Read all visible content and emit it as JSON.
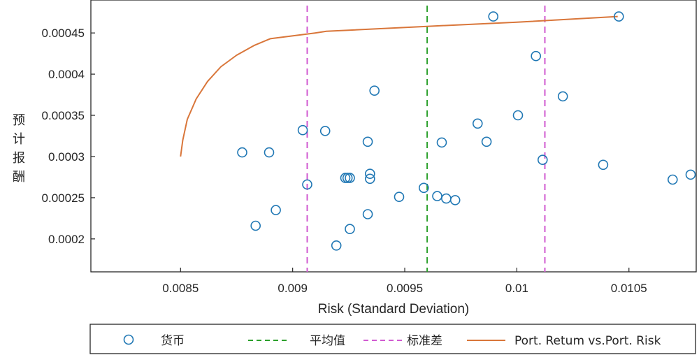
{
  "chart_data": {
    "type": "scatter",
    "xlabel": "Risk (Standard Deviation)",
    "ylabel": "预计报酬",
    "xlim": [
      0.0081,
      0.0108
    ],
    "ylim": [
      0.00016,
      0.00049
    ],
    "x_ticks": [
      0.0085,
      0.009,
      0.0095,
      0.01,
      0.0105
    ],
    "x_tick_labels": [
      "0.0085",
      "0.009",
      "0.0095",
      "0.01",
      "0.0105"
    ],
    "y_ticks": [
      0.0002,
      0.00025,
      0.0003,
      0.00035,
      0.0004,
      0.00045
    ],
    "y_tick_labels": [
      "0.0002",
      "0.00025",
      "0.0003",
      "0.00035",
      "0.0004",
      "0.00045"
    ],
    "grid": false,
    "legend_position": "bottom",
    "series": [
      {
        "name": "货币",
        "kind": "scatter",
        "marker": "circle-open",
        "color": "#1f77b4",
        "points": [
          [
            0.008775,
            0.000305
          ],
          [
            0.008835,
            0.000216
          ],
          [
            0.008895,
            0.000305
          ],
          [
            0.008925,
            0.000235
          ],
          [
            0.009045,
            0.000332
          ],
          [
            0.009065,
            0.000266
          ],
          [
            0.009145,
            0.000331
          ],
          [
            0.009195,
            0.000192
          ],
          [
            0.009235,
            0.000274
          ],
          [
            0.009245,
            0.000274
          ],
          [
            0.009255,
            0.000212
          ],
          [
            0.009255,
            0.000274
          ],
          [
            0.009335,
            0.000318
          ],
          [
            0.009335,
            0.00023
          ],
          [
            0.009345,
            0.000279
          ],
          [
            0.009345,
            0.000273
          ],
          [
            0.009365,
            0.00038
          ],
          [
            0.009475,
            0.000251
          ],
          [
            0.009585,
            0.000262
          ],
          [
            0.009645,
            0.000252
          ],
          [
            0.009665,
            0.000317
          ],
          [
            0.009685,
            0.000249
          ],
          [
            0.009725,
            0.000247
          ],
          [
            0.009825,
            0.00034
          ],
          [
            0.009865,
            0.000318
          ],
          [
            0.009895,
            0.00047
          ],
          [
            0.010005,
            0.00035
          ],
          [
            0.010085,
            0.000422
          ],
          [
            0.010115,
            0.000296
          ],
          [
            0.010205,
            0.000373
          ],
          [
            0.010385,
            0.00029
          ],
          [
            0.010455,
            0.00047
          ],
          [
            0.010695,
            0.000272
          ],
          [
            0.010775,
            0.000278
          ]
        ]
      },
      {
        "name": "平均值",
        "kind": "vline",
        "style": "dashed",
        "color": "#2ca02c",
        "x": [
          0.0096
        ]
      },
      {
        "name": "标准差",
        "kind": "vline",
        "style": "dashed",
        "color": "#d15bd1",
        "x": [
          0.009065,
          0.010125
        ]
      },
      {
        "name": "Port. Retum vs.Port. Risk",
        "kind": "line",
        "color": "#d9763a",
        "points": [
          [
            0.0085,
            0.0003
          ],
          [
            0.00851,
            0.00032
          ],
          [
            0.00853,
            0.000345
          ],
          [
            0.00857,
            0.00037
          ],
          [
            0.00862,
            0.000391
          ],
          [
            0.00868,
            0.000409
          ],
          [
            0.00875,
            0.000423
          ],
          [
            0.00883,
            0.000435
          ],
          [
            0.0089,
            0.000443
          ],
          [
            0.0091,
            0.00045
          ],
          [
            0.00915,
            0.000452
          ],
          [
            0.0096,
            0.000458
          ],
          [
            0.01,
            0.000463
          ],
          [
            0.01045,
            0.00047
          ]
        ]
      }
    ],
    "legend_entries": [
      "货币",
      "平均值",
      "标准差",
      "Port. Retum vs.Port. Risk"
    ]
  }
}
